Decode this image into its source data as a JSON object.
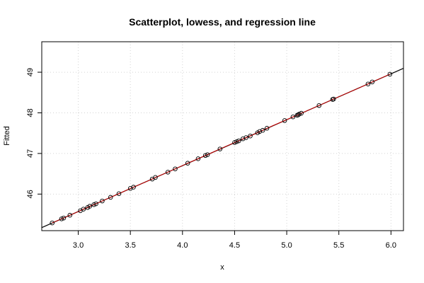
{
  "chart_data": {
    "type": "scatter",
    "title": "Scatterplot, lowess, and regression line",
    "xlabel": "x",
    "ylabel": "Fitted",
    "xlim": [
      2.65,
      6.12
    ],
    "ylim": [
      45.1,
      49.75
    ],
    "xticks": [
      "3.0",
      "3.5",
      "4.0",
      "4.5",
      "5.0",
      "5.5",
      "6.0"
    ],
    "xtick_values": [
      3.0,
      3.5,
      4.0,
      4.5,
      5.0,
      5.5,
      6.0
    ],
    "yticks": [
      "46",
      "47",
      "48",
      "49"
    ],
    "ytick_values": [
      46,
      47,
      48,
      49
    ],
    "grid": true,
    "regression": {
      "slope": 1.13,
      "intercept": 42.18,
      "color": "#000000"
    },
    "lowess_color": "#cc0000",
    "x": [
      2.75,
      2.84,
      2.86,
      2.92,
      3.02,
      3.05,
      3.09,
      3.11,
      3.15,
      3.17,
      3.23,
      3.31,
      3.39,
      3.5,
      3.53,
      3.71,
      3.74,
      3.86,
      3.93,
      4.05,
      4.15,
      4.22,
      4.24,
      4.36,
      4.5,
      4.52,
      4.54,
      4.58,
      4.61,
      4.65,
      4.72,
      4.74,
      4.77,
      4.81,
      4.98,
      5.06,
      5.1,
      5.11,
      5.12,
      5.14,
      5.31,
      5.44,
      5.45,
      5.78,
      5.82,
      5.99
    ],
    "y": [
      45.29,
      45.39,
      45.41,
      45.48,
      45.59,
      45.63,
      45.67,
      45.7,
      45.74,
      45.76,
      45.83,
      45.92,
      46.01,
      46.14,
      46.17,
      46.37,
      46.41,
      46.54,
      46.62,
      46.76,
      46.87,
      46.95,
      46.97,
      47.11,
      47.27,
      47.29,
      47.31,
      47.36,
      47.39,
      47.43,
      47.51,
      47.54,
      47.57,
      47.62,
      47.81,
      47.9,
      47.94,
      47.95,
      47.97,
      47.99,
      48.18,
      48.33,
      48.34,
      48.71,
      48.76,
      48.95
    ]
  }
}
